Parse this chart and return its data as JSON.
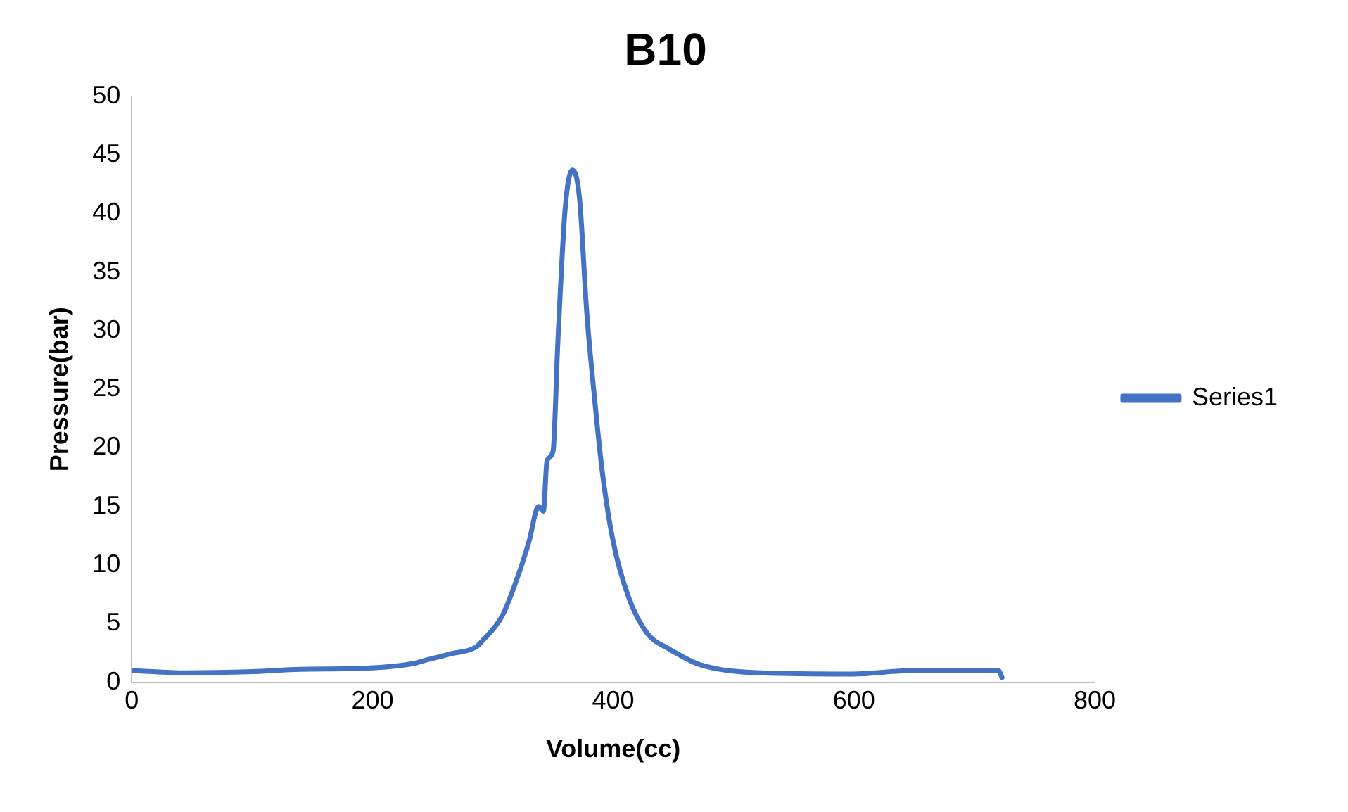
{
  "chart_data": {
    "type": "line",
    "title": "B10",
    "xlabel": "Volume(cc)",
    "ylabel": "Pressure(bar)",
    "xlim": [
      0,
      800
    ],
    "xticks": [
      0,
      200,
      400,
      600,
      800
    ],
    "ylim": [
      0,
      50
    ],
    "yticks": [
      0,
      5,
      10,
      15,
      20,
      25,
      30,
      35,
      40,
      45,
      50
    ],
    "grid": false,
    "legend": "right",
    "marker": "none",
    "series": [
      {
        "name": "Series1",
        "color": "#4472c4",
        "x": [
          0,
          44,
          100,
          140,
          195,
          234,
          245,
          264,
          286,
          291,
          308,
          321,
          330,
          338,
          342,
          345,
          350,
          354,
          360,
          366,
          372,
          378,
          385,
          391,
          400,
          413,
          428,
          447,
          452,
          472,
          523,
          599,
          649,
          720,
          723
        ],
        "values": [
          1.0,
          0.8,
          0.9,
          1.1,
          1.2,
          1.6,
          1.9,
          2.4,
          3.0,
          3.5,
          5.7,
          9.1,
          12,
          15,
          14.6,
          18.9,
          19.7,
          29,
          40.3,
          43.7,
          41.3,
          31.6,
          23.7,
          17.9,
          12,
          7.2,
          4.2,
          2.8,
          2.5,
          1.5,
          0.8,
          0.7,
          1.0,
          1.0,
          0.4
        ]
      }
    ]
  }
}
